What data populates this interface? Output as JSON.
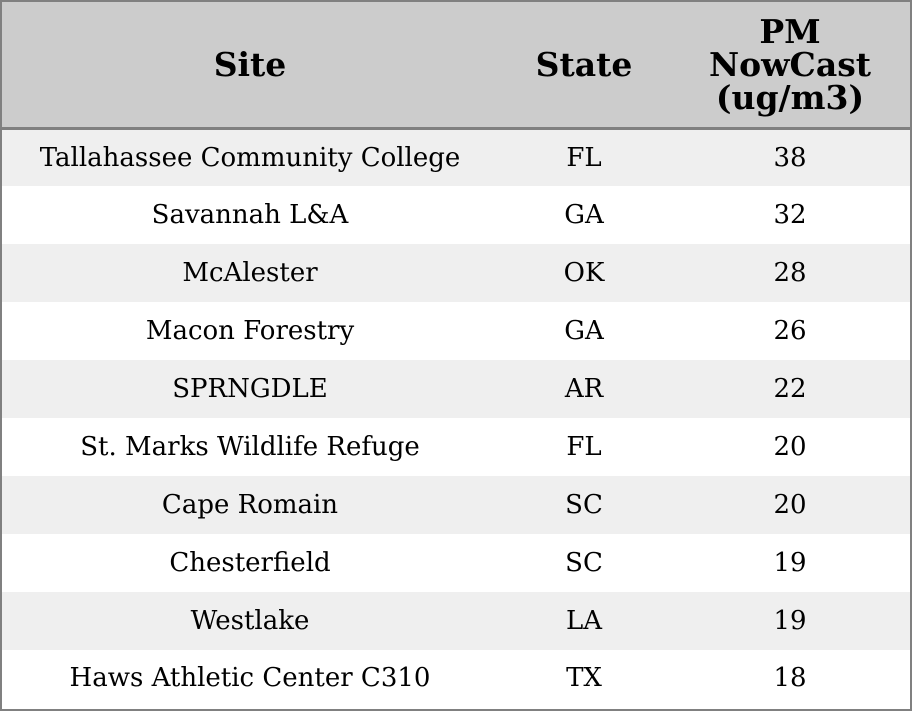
{
  "chart_data": {
    "type": "table",
    "columns": [
      "Site",
      "State",
      "PM NowCast (ug/m3)"
    ],
    "rows": [
      {
        "site": "Tallahassee Community College",
        "state": "FL",
        "pm": "38"
      },
      {
        "site": "Savannah L&A",
        "state": "GA",
        "pm": "32"
      },
      {
        "site": "McAlester",
        "state": "OK",
        "pm": "28"
      },
      {
        "site": "Macon Forestry",
        "state": "GA",
        "pm": "26"
      },
      {
        "site": "SPRNGDLE",
        "state": "AR",
        "pm": "22"
      },
      {
        "site": "St. Marks Wildlife Refuge",
        "state": "FL",
        "pm": "20"
      },
      {
        "site": "Cape Romain",
        "state": "SC",
        "pm": "20"
      },
      {
        "site": "Chesterfield",
        "state": "SC",
        "pm": "19"
      },
      {
        "site": "Westlake",
        "state": "LA",
        "pm": "19"
      },
      {
        "site": "Haws Athletic Center C310",
        "state": "TX",
        "pm": "18"
      }
    ]
  },
  "colors": {
    "header_bg": "#cccccc",
    "row_alt_bg": "#efefef",
    "row_bg": "#ffffff",
    "border": "#808080"
  }
}
